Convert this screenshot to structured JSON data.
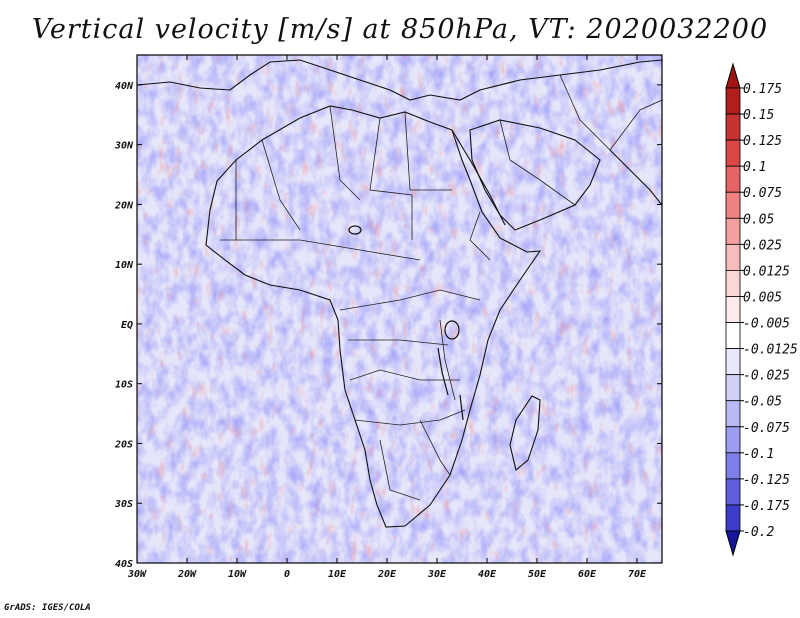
{
  "title": "Vertical velocity [m/s] at 850hPa, VT: 2020032200",
  "footer": "GrADS: IGES/COLA",
  "map": {
    "region": "Africa and Arabian Peninsula",
    "lon_range": [
      -30,
      75
    ],
    "lat_range": [
      -40,
      45
    ],
    "lon_ticks": [
      {
        "value": -30,
        "label": "30W"
      },
      {
        "value": -20,
        "label": "20W"
      },
      {
        "value": -10,
        "label": "10W"
      },
      {
        "value": 0,
        "label": "0"
      },
      {
        "value": 10,
        "label": "10E"
      },
      {
        "value": 20,
        "label": "20E"
      },
      {
        "value": 30,
        "label": "30E"
      },
      {
        "value": 40,
        "label": "40E"
      },
      {
        "value": 50,
        "label": "50E"
      },
      {
        "value": 60,
        "label": "60E"
      },
      {
        "value": 70,
        "label": "70E"
      }
    ],
    "lat_ticks": [
      {
        "value": 40,
        "label": "40N"
      },
      {
        "value": 30,
        "label": "30N"
      },
      {
        "value": 20,
        "label": "20N"
      },
      {
        "value": 10,
        "label": "10N"
      },
      {
        "value": 0,
        "label": "EQ"
      },
      {
        "value": -10,
        "label": "10S"
      },
      {
        "value": -20,
        "label": "20S"
      },
      {
        "value": -30,
        "label": "30S"
      },
      {
        "value": -40,
        "label": "40S"
      }
    ]
  },
  "colorbar": {
    "levels": [
      {
        "label": "0.175",
        "color": "#b01e1e"
      },
      {
        "label": "0.15",
        "color": "#c83232"
      },
      {
        "label": "0.125",
        "color": "#dc4646"
      },
      {
        "label": "0.1",
        "color": "#e66464"
      },
      {
        "label": "0.075",
        "color": "#f08282"
      },
      {
        "label": "0.05",
        "color": "#f5a0a0"
      },
      {
        "label": "0.025",
        "color": "#f8bcbc"
      },
      {
        "label": "0.0125",
        "color": "#fbd6d6"
      },
      {
        "label": "0.005",
        "color": "#fdeaea"
      },
      {
        "label": "-0.005",
        "color": "#ffffff"
      },
      {
        "label": "-0.0125",
        "color": "#e8e8fb"
      },
      {
        "label": "-0.025",
        "color": "#d2d2f8"
      },
      {
        "label": "-0.05",
        "color": "#b8b8f5"
      },
      {
        "label": "-0.075",
        "color": "#9c9cf0"
      },
      {
        "label": "-0.1",
        "color": "#7e7ee8"
      },
      {
        "label": "-0.125",
        "color": "#5e5edc"
      },
      {
        "label": "-0.175",
        "color": "#3c3ccc"
      },
      {
        "label": "-0.2",
        "color": "#2323b4"
      }
    ],
    "top_color": "#a01414",
    "bottom_color": "#16169a"
  }
}
